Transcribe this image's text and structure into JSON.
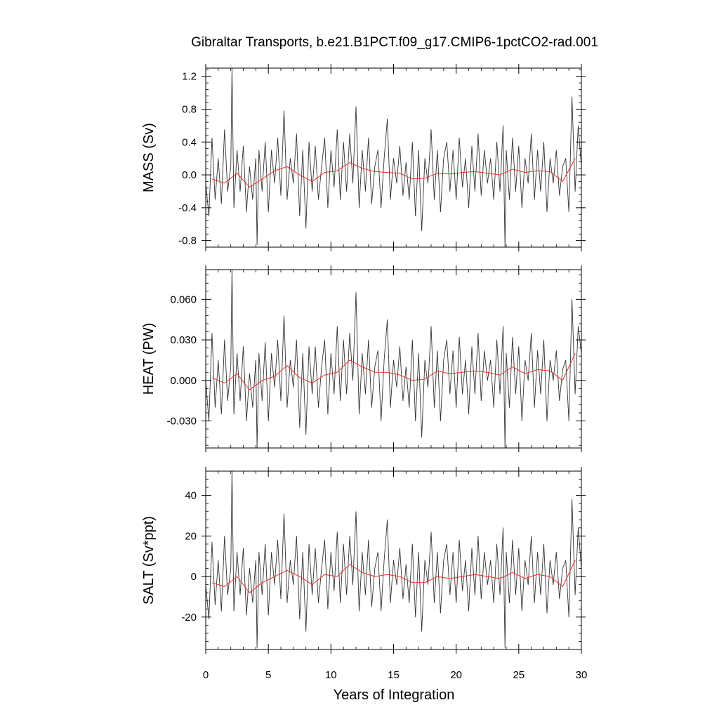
{
  "chart_data": [
    {
      "type": "line",
      "title": "Gibraltar Transports, b.e21.B1PCT.f09_g17.CMIP6-1pctCO2-rad.001",
      "ylabel": "MASS (Sv)",
      "xlim": [
        0,
        30
      ],
      "ylim": [
        -0.88,
        1.3
      ],
      "yticks": [
        "1.2",
        "0.8",
        "0.4",
        "0.0",
        "-0.4",
        "-0.8"
      ],
      "series": [
        {
          "color": "#333333",
          "x": [
            0,
            0.25,
            0.5,
            0.75,
            1.0,
            1.25,
            1.5,
            1.75,
            2.0,
            2.1,
            2.25,
            2.5,
            2.75,
            3.0,
            3.25,
            3.5,
            3.75,
            4.0,
            4.1,
            4.25,
            4.5,
            4.75,
            5.0,
            5.25,
            5.5,
            5.75,
            6.0,
            6.25,
            6.5,
            6.75,
            7.0,
            7.25,
            7.5,
            7.75,
            8.0,
            8.25,
            8.5,
            8.75,
            9.0,
            9.25,
            9.5,
            9.75,
            10.0,
            10.25,
            10.5,
            10.75,
            11.0,
            11.25,
            11.5,
            11.75,
            12.0,
            12.25,
            12.5,
            12.75,
            13.0,
            13.25,
            13.5,
            13.75,
            14.0,
            14.25,
            14.5,
            14.75,
            15.0,
            15.25,
            15.5,
            15.75,
            16.0,
            16.25,
            16.5,
            16.75,
            17.0,
            17.25,
            17.5,
            17.75,
            18.0,
            18.25,
            18.5,
            18.75,
            19.0,
            19.25,
            19.5,
            19.75,
            20.0,
            20.25,
            20.5,
            20.75,
            21.0,
            21.25,
            21.5,
            21.75,
            22.0,
            22.25,
            22.5,
            22.75,
            23.0,
            23.25,
            23.5,
            23.75,
            23.9,
            24.0,
            24.25,
            24.5,
            24.75,
            25.0,
            25.25,
            25.5,
            25.75,
            26.0,
            26.25,
            26.5,
            26.75,
            27.0,
            27.25,
            27.5,
            27.75,
            28.0,
            28.25,
            28.5,
            28.75,
            29.0,
            29.25,
            29.5,
            29.75,
            30.0
          ],
          "values": [
            -0.1,
            -0.5,
            0.45,
            -0.3,
            0.2,
            -0.35,
            0.55,
            -0.2,
            0.1,
            1.3,
            -0.4,
            0.3,
            -0.2,
            0.35,
            -0.45,
            0.1,
            -0.3,
            0.2,
            -0.85,
            0.3,
            -0.2,
            0.4,
            -0.45,
            0.3,
            -0.1,
            0.45,
            -0.25,
            0.78,
            -0.3,
            0.2,
            -0.1,
            0.5,
            -0.5,
            0.3,
            -0.65,
            0.4,
            -0.2,
            0.35,
            -0.3,
            0.1,
            0.45,
            -0.4,
            0.3,
            -0.15,
            0.55,
            -0.3,
            0.4,
            -0.2,
            0.5,
            -0.1,
            0.83,
            -0.4,
            0.3,
            -0.2,
            0.45,
            -0.35,
            0.1,
            0.3,
            -0.4,
            0.2,
            0.68,
            -0.3,
            0.2,
            -0.1,
            0.35,
            -0.25,
            0.15,
            -0.3,
            0.4,
            -0.5,
            0.3,
            -0.68,
            0.2,
            -0.1,
            0.55,
            -0.3,
            0.3,
            -0.45,
            0.2,
            0.4,
            -0.2,
            0.3,
            -0.3,
            0.45,
            -0.15,
            0.2,
            -0.4,
            0.35,
            -0.2,
            0.5,
            -0.25,
            0.3,
            -0.1,
            0.2,
            -0.3,
            0.4,
            -0.2,
            0.6,
            -0.88,
            0.3,
            -0.3,
            0.45,
            -0.2,
            0.35,
            -0.4,
            0.2,
            -0.1,
            0.5,
            -0.3,
            0.3,
            -0.2,
            0.4,
            -0.45,
            0.2,
            -0.1,
            0.3,
            -0.25,
            0.1,
            0.2,
            -0.45,
            0.95,
            -0.2,
            0.6,
            0.1
          ]
        },
        {
          "color": "#e8302a",
          "x": [
            0.5,
            1.5,
            2.5,
            3.5,
            4.5,
            5.5,
            6.5,
            7.5,
            8.5,
            9.5,
            10.5,
            11.5,
            12.5,
            13.5,
            14.5,
            15.5,
            16.5,
            17.5,
            18.5,
            19.5,
            20.5,
            21.5,
            22.5,
            23.5,
            24.5,
            25.5,
            26.5,
            27.5,
            28.5,
            29.5
          ],
          "values": [
            -0.05,
            -0.1,
            0.02,
            -0.15,
            -0.05,
            0.05,
            0.1,
            0.0,
            -0.08,
            0.03,
            0.05,
            0.15,
            0.08,
            0.04,
            0.03,
            0.02,
            -0.05,
            -0.04,
            0.02,
            0.01,
            0.03,
            0.04,
            0.02,
            0.0,
            0.07,
            0.03,
            0.05,
            0.04,
            -0.08,
            0.2
          ]
        }
      ]
    },
    {
      "type": "line",
      "ylabel": "HEAT (PW)",
      "xlim": [
        0,
        30
      ],
      "ylim": [
        -0.05,
        0.082
      ],
      "yticks": [
        "0.060",
        "0.030",
        "0.000",
        "-0.030"
      ],
      "series": [
        {
          "color": "#333333",
          "x": [
            0,
            0.25,
            0.5,
            0.75,
            1.0,
            1.25,
            1.5,
            1.75,
            2.0,
            2.1,
            2.25,
            2.5,
            2.75,
            3.0,
            3.25,
            3.5,
            3.75,
            4.0,
            4.1,
            4.25,
            4.5,
            4.75,
            5.0,
            5.25,
            5.5,
            5.75,
            6.0,
            6.25,
            6.5,
            6.75,
            7.0,
            7.25,
            7.5,
            7.75,
            8.0,
            8.25,
            8.5,
            8.75,
            9.0,
            9.25,
            9.5,
            9.75,
            10.0,
            10.25,
            10.5,
            10.75,
            11.0,
            11.25,
            11.5,
            11.75,
            12.0,
            12.25,
            12.5,
            12.75,
            13.0,
            13.25,
            13.5,
            13.75,
            14.0,
            14.25,
            14.5,
            14.75,
            15.0,
            15.25,
            15.5,
            15.75,
            16.0,
            16.25,
            16.5,
            16.75,
            17.0,
            17.25,
            17.5,
            17.75,
            18.0,
            18.25,
            18.5,
            18.75,
            19.0,
            19.25,
            19.5,
            19.75,
            20.0,
            20.25,
            20.5,
            20.75,
            21.0,
            21.25,
            21.5,
            21.75,
            22.0,
            22.25,
            22.5,
            22.75,
            23.0,
            23.25,
            23.5,
            23.75,
            23.9,
            24.0,
            24.25,
            24.5,
            24.75,
            25.0,
            25.25,
            25.5,
            25.75,
            26.0,
            26.25,
            26.5,
            26.75,
            27.0,
            27.25,
            27.5,
            27.75,
            28.0,
            28.25,
            28.5,
            28.75,
            29.0,
            29.25,
            29.5,
            29.75,
            30.0
          ],
          "values": [
            0.0,
            -0.03,
            0.035,
            -0.02,
            0.015,
            -0.025,
            0.03,
            -0.015,
            0.01,
            0.082,
            -0.025,
            0.02,
            -0.015,
            0.025,
            -0.03,
            0.005,
            -0.02,
            0.015,
            -0.05,
            0.02,
            -0.015,
            0.028,
            -0.03,
            0.02,
            -0.005,
            0.03,
            -0.015,
            0.048,
            -0.02,
            0.015,
            -0.005,
            0.03,
            -0.035,
            0.02,
            -0.04,
            0.025,
            -0.01,
            0.025,
            -0.02,
            0.01,
            0.03,
            -0.025,
            0.02,
            -0.01,
            0.04,
            -0.015,
            0.03,
            -0.01,
            0.035,
            0.0,
            0.065,
            -0.025,
            0.02,
            -0.01,
            0.03,
            -0.02,
            0.01,
            0.022,
            -0.03,
            0.015,
            0.045,
            -0.02,
            0.015,
            -0.005,
            0.025,
            -0.015,
            0.01,
            -0.02,
            0.03,
            -0.03,
            0.02,
            -0.042,
            0.015,
            -0.005,
            0.04,
            -0.02,
            0.022,
            -0.03,
            0.015,
            0.03,
            -0.01,
            0.022,
            -0.02,
            0.032,
            -0.01,
            0.015,
            -0.025,
            0.025,
            -0.01,
            0.035,
            -0.015,
            0.022,
            0.0,
            0.015,
            -0.02,
            0.03,
            -0.01,
            0.04,
            -0.05,
            0.02,
            -0.02,
            0.032,
            -0.01,
            0.025,
            -0.03,
            0.015,
            0.0,
            0.035,
            -0.02,
            0.022,
            -0.01,
            0.03,
            -0.03,
            0.015,
            0.0,
            0.022,
            -0.015,
            0.008,
            0.015,
            -0.03,
            0.06,
            -0.01,
            0.04,
            0.02
          ]
        },
        {
          "color": "#e8302a",
          "x": [
            0.5,
            1.5,
            2.5,
            3.5,
            4.5,
            5.5,
            6.5,
            7.5,
            8.5,
            9.5,
            10.5,
            11.5,
            12.5,
            13.5,
            14.5,
            15.5,
            16.5,
            17.5,
            18.5,
            19.5,
            20.5,
            21.5,
            22.5,
            23.5,
            24.5,
            25.5,
            26.5,
            27.5,
            28.5,
            29.5
          ],
          "values": [
            0.002,
            -0.002,
            0.005,
            -0.007,
            0.0,
            0.003,
            0.011,
            0.002,
            -0.002,
            0.004,
            0.006,
            0.015,
            0.01,
            0.006,
            0.006,
            0.004,
            0.0,
            0.001,
            0.007,
            0.005,
            0.006,
            0.007,
            0.006,
            0.004,
            0.01,
            0.005,
            0.008,
            0.007,
            0.0,
            0.02
          ]
        }
      ]
    },
    {
      "type": "line",
      "ylabel": "SALT (Sv*ppt)",
      "xlabel": "Years of Integration",
      "xlim": [
        0,
        30
      ],
      "ylim": [
        -36,
        52
      ],
      "yticks": [
        "40",
        "20",
        "0",
        "-20"
      ],
      "xticks": [
        "0",
        "5",
        "10",
        "15",
        "20",
        "25",
        "30"
      ],
      "series": [
        {
          "color": "#333333",
          "x": [
            0,
            0.25,
            0.5,
            0.75,
            1.0,
            1.25,
            1.5,
            1.75,
            2.0,
            2.1,
            2.25,
            2.5,
            2.75,
            3.0,
            3.25,
            3.5,
            3.75,
            4.0,
            4.1,
            4.25,
            4.5,
            4.75,
            5.0,
            5.25,
            5.5,
            5.75,
            6.0,
            6.25,
            6.5,
            6.75,
            7.0,
            7.25,
            7.5,
            7.75,
            8.0,
            8.25,
            8.5,
            8.75,
            9.0,
            9.25,
            9.5,
            9.75,
            10.0,
            10.25,
            10.5,
            10.75,
            11.0,
            11.25,
            11.5,
            11.75,
            12.0,
            12.25,
            12.5,
            12.75,
            13.0,
            13.25,
            13.5,
            13.75,
            14.0,
            14.25,
            14.5,
            14.75,
            15.0,
            15.25,
            15.5,
            15.75,
            16.0,
            16.25,
            16.5,
            16.75,
            17.0,
            17.25,
            17.5,
            17.75,
            18.0,
            18.25,
            18.5,
            18.75,
            19.0,
            19.25,
            19.5,
            19.75,
            20.0,
            20.25,
            20.5,
            20.75,
            21.0,
            21.25,
            21.5,
            21.75,
            22.0,
            22.25,
            22.5,
            22.75,
            23.0,
            23.25,
            23.5,
            23.75,
            23.9,
            24.0,
            24.25,
            24.5,
            24.75,
            25.0,
            25.25,
            25.5,
            25.75,
            26.0,
            26.25,
            26.5,
            26.75,
            27.0,
            27.25,
            27.5,
            27.75,
            28.0,
            28.25,
            28.5,
            28.75,
            29.0,
            29.25,
            29.5,
            29.75,
            30.0
          ],
          "values": [
            -4,
            -21,
            17,
            -14,
            8,
            -17,
            20,
            -9,
            4,
            52,
            -17,
            12,
            -9,
            14,
            -19,
            4,
            -13,
            8,
            -35,
            12,
            -9,
            16,
            -19,
            12,
            -4,
            18,
            -11,
            31,
            -13,
            8,
            -4,
            20,
            -21,
            12,
            -27,
            16,
            -9,
            14,
            -13,
            4,
            18,
            -16,
            12,
            -7,
            22,
            -13,
            16,
            -9,
            20,
            -4,
            32,
            -17,
            12,
            -9,
            18,
            -15,
            4,
            12,
            -17,
            8,
            28,
            -13,
            8,
            -4,
            14,
            -11,
            6,
            -13,
            16,
            -20,
            12,
            -27,
            8,
            -4,
            22,
            -13,
            12,
            -18,
            8,
            16,
            -9,
            12,
            -13,
            18,
            -7,
            8,
            -17,
            14,
            -9,
            20,
            -11,
            12,
            -4,
            8,
            -13,
            16,
            -9,
            24,
            -35,
            12,
            -13,
            18,
            -9,
            14,
            -17,
            8,
            -4,
            20,
            -13,
            12,
            -9,
            16,
            -18,
            8,
            -4,
            12,
            -11,
            4,
            8,
            -20,
            38,
            -9,
            24,
            4
          ]
        },
        {
          "color": "#e8302a",
          "x": [
            0.5,
            1.5,
            2.5,
            3.5,
            4.5,
            5.5,
            6.5,
            7.5,
            8.5,
            9.5,
            10.5,
            11.5,
            12.5,
            13.5,
            14.5,
            15.5,
            16.5,
            17.5,
            18.5,
            19.5,
            20.5,
            21.5,
            22.5,
            23.5,
            24.5,
            25.5,
            26.5,
            27.5,
            28.5,
            29.5
          ],
          "values": [
            -3,
            -5,
            0,
            -8,
            -3,
            0,
            3,
            0,
            -4,
            1,
            0,
            6,
            2,
            0,
            1,
            0,
            -3,
            -3,
            0,
            -1,
            0,
            1,
            0,
            -1,
            2,
            -1,
            1,
            0,
            -5,
            8
          ]
        }
      ]
    }
  ]
}
